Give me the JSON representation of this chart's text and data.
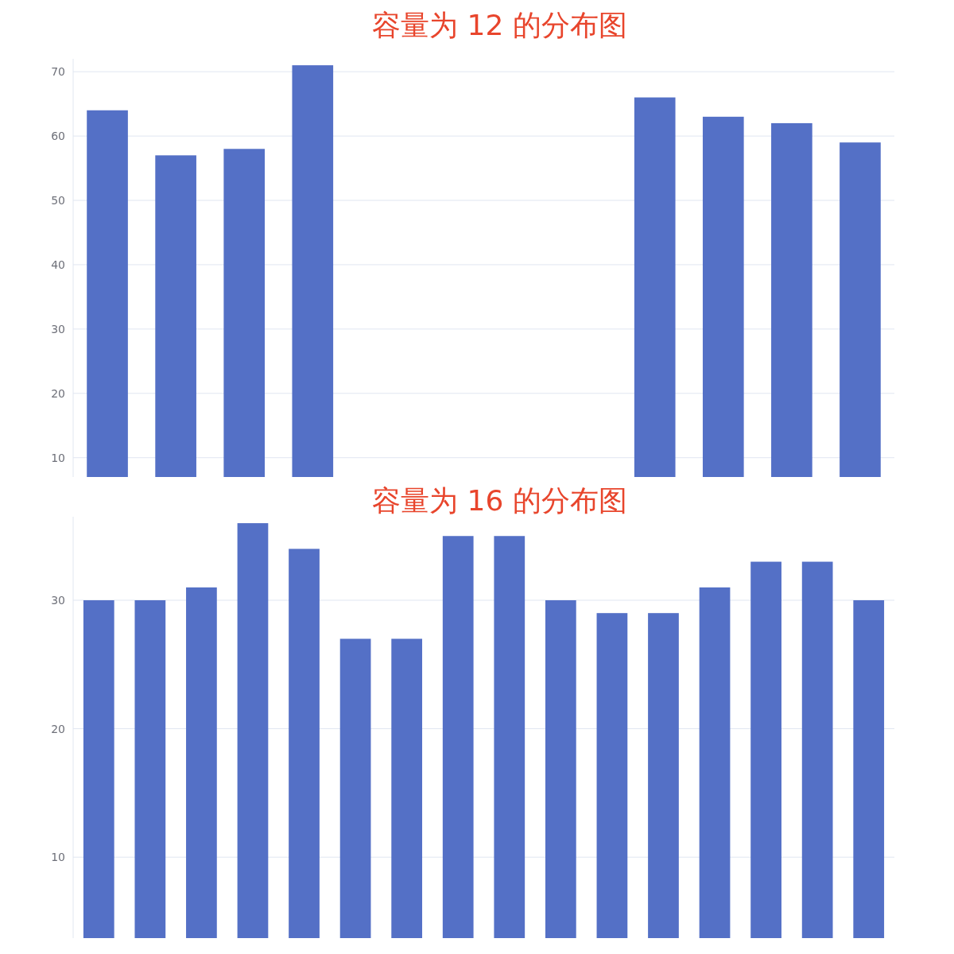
{
  "chart_data": [
    {
      "type": "bar",
      "title": "容量为 12 的分布图",
      "categories": [
        null,
        null,
        null,
        null,
        null,
        null,
        null,
        null,
        null,
        null,
        null,
        null
      ],
      "values": [
        64,
        57,
        58,
        71,
        null,
        null,
        null,
        null,
        66,
        63,
        62,
        59
      ],
      "color": "#5470c6",
      "ylim": [
        7,
        72
      ],
      "yticks": [
        10,
        20,
        30,
        40,
        50,
        60,
        70
      ],
      "grid": "y"
    },
    {
      "type": "bar",
      "title": "容量为 16 的分布图",
      "categories": [
        null,
        null,
        null,
        null,
        null,
        null,
        null,
        null,
        null,
        null,
        null,
        null,
        null,
        null,
        null,
        null
      ],
      "values": [
        30,
        30,
        31,
        36,
        34,
        27,
        27,
        35,
        35,
        30,
        29,
        29,
        31,
        33,
        33,
        30
      ],
      "color": "#5470c6",
      "ylim": [
        3.7,
        36.5
      ],
      "yticks": [
        10,
        20,
        30
      ],
      "grid": "y"
    }
  ]
}
